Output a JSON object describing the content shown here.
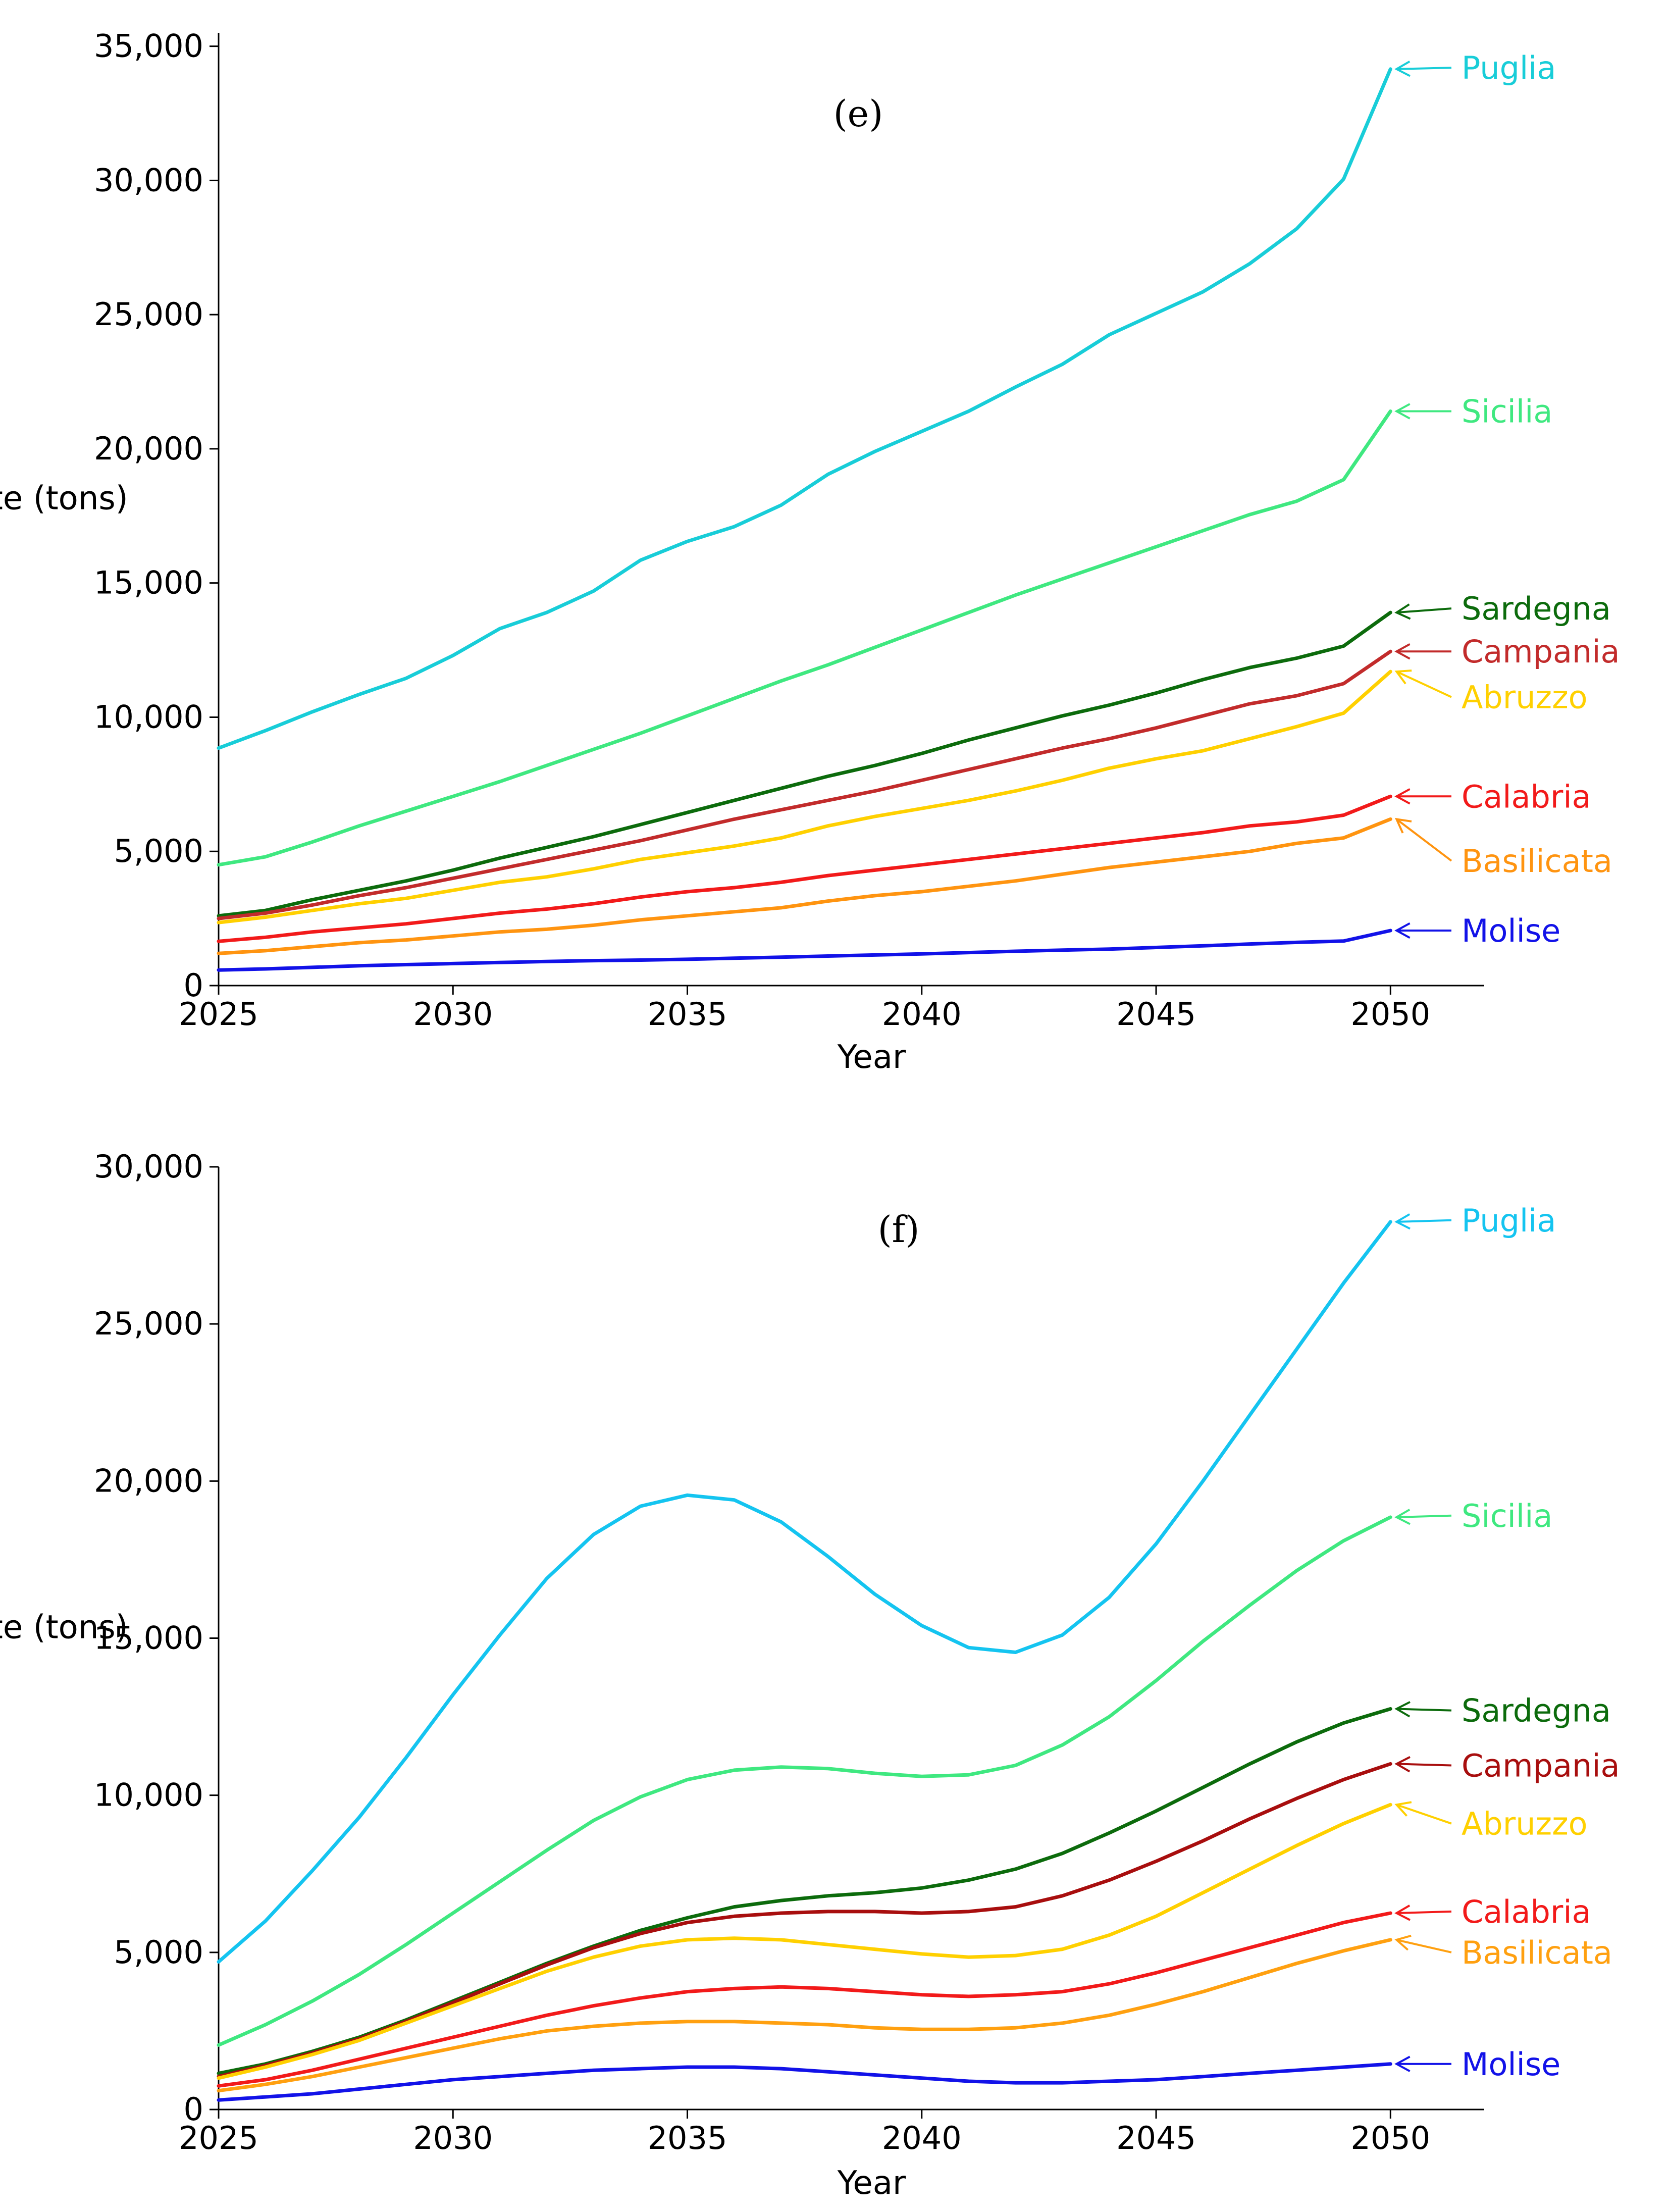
{
  "chart_data": [
    {
      "type": "line",
      "panel_label": "(e)",
      "xlabel": "Year",
      "ylabel": "PV Waste (tons)",
      "xlim": [
        2025,
        2052
      ],
      "ylim": [
        0,
        35500
      ],
      "x_ticks": [
        "2025",
        "2030",
        "2035",
        "2040",
        "2045",
        "2050"
      ],
      "y_ticks": [
        "0",
        "5,000",
        "10,000",
        "15,000",
        "20,000",
        "25,000",
        "30,000",
        "35,000"
      ],
      "grid": false,
      "x": [
        2025,
        2026,
        2027,
        2028,
        2029,
        2030,
        2031,
        2032,
        2033,
        2034,
        2035,
        2036,
        2037,
        2038,
        2039,
        2040,
        2041,
        2042,
        2043,
        2044,
        2045,
        2046,
        2047,
        2048,
        2049,
        2050
      ],
      "series": [
        {
          "name": "Puglia",
          "color": "#18cdd8",
          "label_y": 34200,
          "values": [
            8850,
            9500,
            10200,
            10850,
            11450,
            12300,
            13300,
            13900,
            14700,
            15850,
            16550,
            17100,
            17900,
            19050,
            19900,
            20650,
            21400,
            22300,
            23150,
            24250,
            25050,
            25850,
            26900,
            28200,
            30050,
            34150
          ]
        },
        {
          "name": "Sicilia",
          "color": "#3fe880",
          "label_y": 21400,
          "values": [
            4500,
            4800,
            5350,
            5950,
            6500,
            7050,
            7600,
            8200,
            8800,
            9400,
            10050,
            10700,
            11350,
            11950,
            12600,
            13250,
            13900,
            14550,
            15150,
            15750,
            16350,
            16950,
            17550,
            18050,
            18850,
            21400
          ]
        },
        {
          "name": "Sardegna",
          "color": "#0c6b0c",
          "label_y": 14050,
          "values": [
            2600,
            2800,
            3200,
            3550,
            3900,
            4300,
            4750,
            5150,
            5550,
            6000,
            6450,
            6900,
            7350,
            7800,
            8200,
            8650,
            9150,
            9600,
            10050,
            10450,
            10900,
            11400,
            11850,
            12200,
            12650,
            13900
          ]
        },
        {
          "name": "Campania",
          "color": "#c22b2b",
          "label_y": 12450,
          "values": [
            2500,
            2700,
            3000,
            3350,
            3650,
            4000,
            4350,
            4700,
            5050,
            5400,
            5800,
            6200,
            6550,
            6900,
            7250,
            7650,
            8050,
            8450,
            8850,
            9200,
            9600,
            10050,
            10500,
            10800,
            11250,
            12450
          ]
        },
        {
          "name": "Abruzzo",
          "color": "#ffd000",
          "label_y": 10750,
          "values": [
            2350,
            2550,
            2800,
            3050,
            3250,
            3550,
            3850,
            4050,
            4350,
            4700,
            4950,
            5200,
            5500,
            5950,
            6300,
            6600,
            6900,
            7250,
            7650,
            8100,
            8450,
            8750,
            9200,
            9650,
            10150,
            11700
          ]
        },
        {
          "name": "Calabria",
          "color": "#f21a1a",
          "label_y": 7050,
          "values": [
            1650,
            1800,
            2000,
            2150,
            2300,
            2500,
            2700,
            2850,
            3050,
            3300,
            3500,
            3650,
            3850,
            4100,
            4300,
            4500,
            4700,
            4900,
            5100,
            5300,
            5500,
            5700,
            5950,
            6100,
            6350,
            7050
          ]
        },
        {
          "name": "Basilicata",
          "color": "#ff9410",
          "label_y": 4650,
          "values": [
            1200,
            1300,
            1450,
            1600,
            1700,
            1850,
            2000,
            2100,
            2250,
            2450,
            2600,
            2750,
            2900,
            3150,
            3350,
            3500,
            3700,
            3900,
            4150,
            4400,
            4600,
            4800,
            5000,
            5300,
            5500,
            6200
          ]
        },
        {
          "name": "Molise",
          "color": "#1212e8",
          "label_y": 2050,
          "values": [
            580,
            620,
            680,
            740,
            780,
            820,
            860,
            900,
            930,
            950,
            980,
            1020,
            1060,
            1100,
            1140,
            1180,
            1230,
            1280,
            1320,
            1360,
            1420,
            1480,
            1550,
            1610,
            1660,
            2050
          ]
        }
      ]
    },
    {
      "type": "line",
      "panel_label": "(f)",
      "xlabel": "Year",
      "ylabel": "PV Waste (tons)",
      "xlim": [
        2025,
        2052
      ],
      "ylim": [
        0,
        30000
      ],
      "x_ticks": [
        "2025",
        "2030",
        "2035",
        "2040",
        "2045",
        "2050"
      ],
      "y_ticks": [
        "0",
        "5,000",
        "10,000",
        "15,000",
        "20,000",
        "25,000",
        "30,000"
      ],
      "grid": false,
      "x": [
        2025,
        2026,
        2027,
        2028,
        2029,
        2030,
        2031,
        2032,
        2033,
        2034,
        2035,
        2036,
        2037,
        2038,
        2039,
        2040,
        2041,
        2042,
        2043,
        2044,
        2045,
        2046,
        2047,
        2048,
        2049,
        2050
      ],
      "series": [
        {
          "name": "Puglia",
          "color": "#14c4f0",
          "label_y": 28300,
          "values": [
            4700,
            6000,
            7600,
            9300,
            11200,
            13200,
            15100,
            16900,
            18300,
            19200,
            19550,
            19400,
            18700,
            17600,
            16400,
            15400,
            14700,
            14550,
            15100,
            16300,
            18000,
            20000,
            22100,
            24200,
            26300,
            28250
          ]
        },
        {
          "name": "Sicilia",
          "color": "#3fe880",
          "label_y": 18900,
          "values": [
            2050,
            2700,
            3450,
            4300,
            5250,
            6250,
            7250,
            8250,
            9200,
            9950,
            10500,
            10800,
            10900,
            10850,
            10700,
            10600,
            10650,
            10950,
            11600,
            12500,
            13650,
            14900,
            16050,
            17150,
            18100,
            18850
          ]
        },
        {
          "name": "Sardegna",
          "color": "#0c6b0c",
          "label_y": 12700,
          "values": [
            1150,
            1450,
            1850,
            2300,
            2850,
            3450,
            4050,
            4650,
            5200,
            5700,
            6100,
            6450,
            6650,
            6800,
            6900,
            7050,
            7300,
            7650,
            8150,
            8800,
            9500,
            10250,
            11000,
            11700,
            12300,
            12750
          ]
        },
        {
          "name": "Campania",
          "color": "#a80e0e",
          "label_y": 10950,
          "values": [
            1050,
            1400,
            1800,
            2250,
            2800,
            3400,
            4000,
            4600,
            5150,
            5600,
            5950,
            6150,
            6250,
            6300,
            6300,
            6250,
            6300,
            6450,
            6800,
            7300,
            7900,
            8550,
            9250,
            9900,
            10500,
            11000
          ]
        },
        {
          "name": "Abruzzo",
          "color": "#ffd000",
          "label_y": 9100,
          "values": [
            1000,
            1350,
            1750,
            2200,
            2750,
            3300,
            3850,
            4400,
            4850,
            5200,
            5400,
            5450,
            5400,
            5250,
            5100,
            4950,
            4850,
            4900,
            5100,
            5550,
            6150,
            6900,
            7650,
            8400,
            9100,
            9700
          ]
        },
        {
          "name": "Calabria",
          "color": "#f21a1a",
          "label_y": 6300,
          "values": [
            750,
            950,
            1250,
            1600,
            1950,
            2300,
            2650,
            3000,
            3300,
            3550,
            3750,
            3850,
            3900,
            3850,
            3750,
            3650,
            3600,
            3650,
            3750,
            4000,
            4350,
            4750,
            5150,
            5550,
            5950,
            6250
          ]
        },
        {
          "name": "Basilicata",
          "color": "#ffa010",
          "label_y": 5000,
          "values": [
            600,
            800,
            1050,
            1350,
            1650,
            1950,
            2250,
            2500,
            2650,
            2750,
            2800,
            2800,
            2750,
            2700,
            2600,
            2550,
            2550,
            2600,
            2750,
            3000,
            3350,
            3750,
            4200,
            4650,
            5050,
            5400
          ]
        },
        {
          "name": "Molise",
          "color": "#1212e8",
          "label_y": 1450,
          "values": [
            300,
            400,
            500,
            650,
            800,
            950,
            1050,
            1150,
            1250,
            1300,
            1350,
            1350,
            1300,
            1200,
            1100,
            1000,
            900,
            850,
            850,
            900,
            950,
            1050,
            1150,
            1250,
            1350,
            1450
          ]
        }
      ]
    }
  ]
}
